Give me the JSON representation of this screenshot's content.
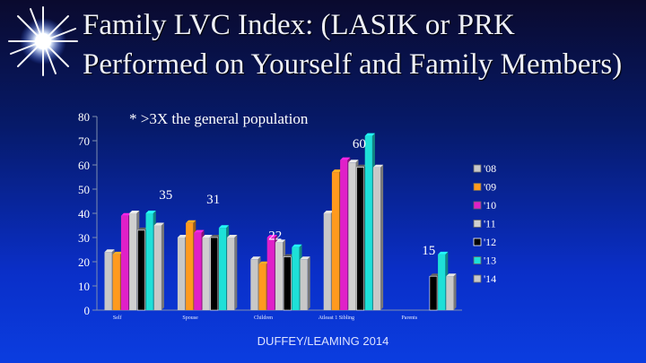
{
  "slide": {
    "title_line1": "Family LVC Index:  (LASIK or PRK",
    "title_line2": "Performed on Yourself and Family Members)",
    "footer": "DUFFEY/LEAMING 2014"
  },
  "chart_data": {
    "type": "bar",
    "categories": [
      "Self",
      "Spouse",
      "Children",
      "Atleast 1 Sibling",
      "Parents"
    ],
    "series": [
      {
        "name": "'08",
        "values": [
          24,
          30,
          21,
          40,
          0
        ],
        "color": "#c8c8c8"
      },
      {
        "name": "'09",
        "values": [
          23,
          36,
          19,
          57,
          0
        ],
        "color": "#ff9a1e"
      },
      {
        "name": "'10",
        "values": [
          39,
          32,
          30,
          62,
          0
        ],
        "color": "#e020c8"
      },
      {
        "name": "'11",
        "values": [
          40,
          30,
          28,
          61,
          0
        ],
        "color": "#cfcfcf"
      },
      {
        "name": "'12",
        "values": [
          33,
          30,
          22,
          59,
          14
        ],
        "color": "#000000"
      },
      {
        "name": "'13",
        "values": [
          40,
          34,
          26,
          72,
          23
        ],
        "color": "#1ee0d8"
      },
      {
        "name": "'14",
        "values": [
          35,
          30,
          21,
          59,
          14
        ],
        "color": "#c8c8c8"
      }
    ],
    "ylim": [
      0,
      80
    ],
    "yticks": [
      0,
      10,
      20,
      30,
      40,
      50,
      60,
      70,
      80
    ],
    "annotations": [
      {
        "text": "* >3X the general population",
        "x": 0,
        "y": 77
      },
      {
        "text": "35",
        "x": 0.85,
        "y": 46
      },
      {
        "text": "31",
        "x": 1.5,
        "y": 44
      },
      {
        "text": "22",
        "x": 2.35,
        "y": 29
      },
      {
        "text": "60",
        "x": 3.5,
        "y": 67
      },
      {
        "text": "15",
        "x": 4.45,
        "y": 23
      }
    ],
    "legend_position": "right",
    "grid": false
  }
}
